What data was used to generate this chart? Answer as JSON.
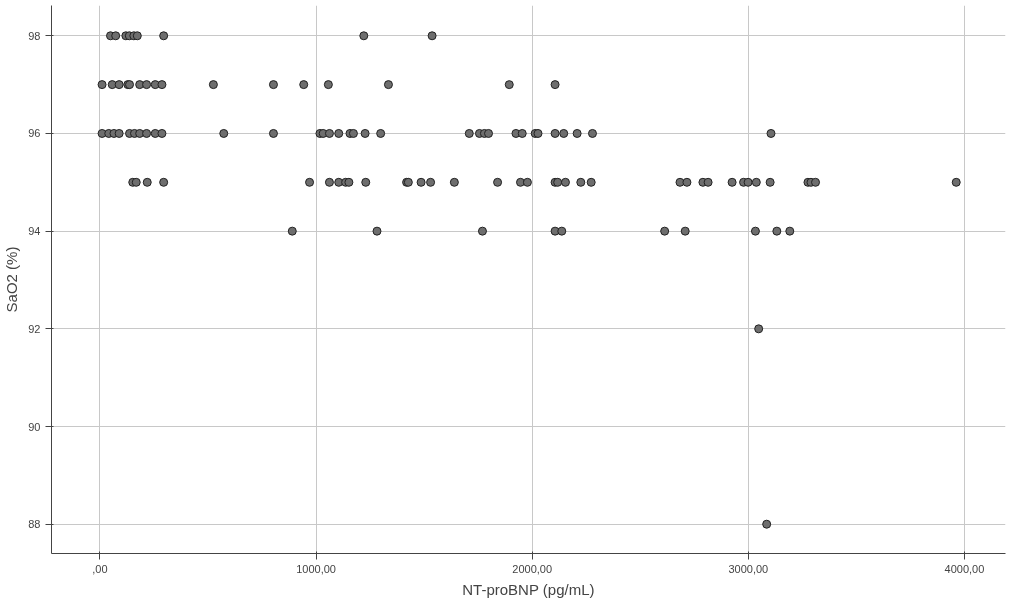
{
  "chart_data": {
    "type": "scatter",
    "xlabel": "NT-proBNP (pg/mL)",
    "ylabel": "SaO2 (%)",
    "xlim": [
      -224,
      4190
    ],
    "ylim": [
      87.4,
      98.62
    ],
    "xticks": [
      {
        "value": 0,
        "label": ",00"
      },
      {
        "value": 1000,
        "label": "1000,00"
      },
      {
        "value": 2000,
        "label": "2000,00"
      },
      {
        "value": 3000,
        "label": "3000,00"
      },
      {
        "value": 4000,
        "label": "4000,00"
      }
    ],
    "yticks": [
      88,
      90,
      92,
      94,
      96,
      98
    ],
    "grid": true,
    "marker": "circle",
    "series": [
      {
        "color": "#6e6e6e",
        "x": [
          49,
          73,
          120,
          136,
          157,
          173,
          295,
          1221,
          1537,
          10,
          57,
          89,
          129,
          137,
          184,
          216,
          256,
          287,
          525,
          803,
          943,
          1057,
          1335,
          1894,
          2106,
          10,
          41,
          65,
          89,
          137,
          160,
          184,
          216,
          256,
          287,
          573,
          803,
          1018,
          1033,
          1062,
          1105,
          1157,
          1173,
          1227,
          1299,
          1709,
          1756,
          1779,
          1798,
          1925,
          1954,
          2014,
          2027,
          2106,
          2146,
          2208,
          2279,
          3105,
          152,
          168,
          219,
          295,
          970,
          1062,
          1105,
          1137,
          1152,
          1230,
          1419,
          1427,
          1486,
          1530,
          1640,
          1840,
          1946,
          1978,
          2106,
          2118,
          2154,
          2225,
          2273,
          2684,
          2716,
          2790,
          2814,
          2925,
          2978,
          2999,
          3037,
          3101,
          3276,
          3290,
          3311,
          3962,
          890,
          1282,
          1770,
          2106,
          2137,
          2613,
          2708,
          3033,
          3132,
          3192,
          3048,
          3085
        ],
        "values": [
          98,
          98,
          98,
          98,
          98,
          98,
          98,
          98,
          98,
          97,
          97,
          97,
          97,
          97,
          97,
          97,
          97,
          97,
          97,
          97,
          97,
          97,
          97,
          97,
          97,
          96,
          96,
          96,
          96,
          96,
          96,
          96,
          96,
          96,
          96,
          96,
          96,
          96,
          96,
          96,
          96,
          96,
          96,
          96,
          96,
          96,
          96,
          96,
          96,
          96,
          96,
          96,
          96,
          96,
          96,
          96,
          96,
          96,
          95,
          95,
          95,
          95,
          95,
          95,
          95,
          95,
          95,
          95,
          95,
          95,
          95,
          95,
          95,
          95,
          95,
          95,
          95,
          95,
          95,
          95,
          95,
          95,
          95,
          95,
          95,
          95,
          95,
          95,
          95,
          95,
          95,
          95,
          95,
          95,
          94,
          94,
          94,
          94,
          94,
          94,
          94,
          94,
          94,
          94,
          92,
          88
        ]
      }
    ]
  }
}
